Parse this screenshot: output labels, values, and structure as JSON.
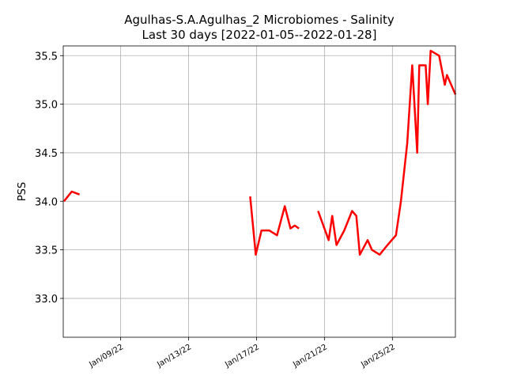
{
  "chart_data": {
    "type": "line",
    "title": "Agulhas-S.A.Agulhas_2 Microbiomes - Salinity",
    "subtitle": "Last 30 days [2022-01-05--2022-01-28]",
    "y_label": "PSS",
    "x": [
      "2022-01-05 16:00",
      "2022-01-06 03:00",
      "2022-01-06 14:00",
      null,
      "2022-01-16 15:00",
      "2022-01-16 23:00",
      "2022-01-17 07:00",
      "2022-01-17 18:00",
      "2022-01-18 05:00",
      "2022-01-18 16:00",
      "2022-01-19 00:00",
      "2022-01-19 06:00",
      "2022-01-19 12:00",
      null,
      "2022-01-20 15:00",
      "2022-01-21 06:00",
      "2022-01-21 11:00",
      "2022-01-21 17:00",
      "2022-01-22 04:00",
      "2022-01-22 15:00",
      "2022-01-22 21:00",
      "2022-01-23 02:00",
      "2022-01-23 13:00",
      "2022-01-23 19:00",
      "2022-01-24 06:00",
      "2022-01-24 17:00",
      "2022-01-25 05:00",
      "2022-01-25 12:00",
      "2022-01-25 18:00",
      "2022-01-25 21:00",
      "2022-01-26 04:00",
      "2022-01-26 11:00",
      "2022-01-26 14:00",
      "2022-01-26 23:00",
      "2022-01-27 02:00",
      "2022-01-27 06:00",
      "2022-01-27 18:00",
      "2022-01-28 02:00",
      "2022-01-28 05:00",
      "2022-01-28 17:00"
    ],
    "series": [
      {
        "name": "Salinity",
        "color": "#ff0000",
        "values": [
          34.0,
          34.1,
          34.07,
          null,
          34.05,
          33.45,
          33.7,
          33.7,
          33.65,
          33.95,
          33.72,
          33.75,
          33.72,
          null,
          33.9,
          33.6,
          33.85,
          33.55,
          33.7,
          33.9,
          33.85,
          33.45,
          33.6,
          33.5,
          33.45,
          33.55,
          33.65,
          34.0,
          34.4,
          34.6,
          35.4,
          34.5,
          35.4,
          35.4,
          35.0,
          35.55,
          35.5,
          35.2,
          35.3,
          35.1
        ]
      }
    ],
    "xlim": [
      "2022-01-05 15:00",
      "2022-01-28 17:00"
    ],
    "xticks": [
      {
        "value": "2022-01-09",
        "label": "Jan/09/22"
      },
      {
        "value": "2022-01-13",
        "label": "Jan/13/22"
      },
      {
        "value": "2022-01-17",
        "label": "Jan/17/22"
      },
      {
        "value": "2022-01-21",
        "label": "Jan/21/22"
      },
      {
        "value": "2022-01-25",
        "label": "Jan/25/22"
      }
    ],
    "ylim": [
      32.6,
      35.6
    ],
    "yticks": [
      {
        "value": 33,
        "label": "33.0"
      },
      33.5,
      {
        "value": 34,
        "label": "34.0"
      },
      34.5,
      {
        "value": 35,
        "label": "35.0"
      },
      35.5
    ],
    "grid": true
  }
}
